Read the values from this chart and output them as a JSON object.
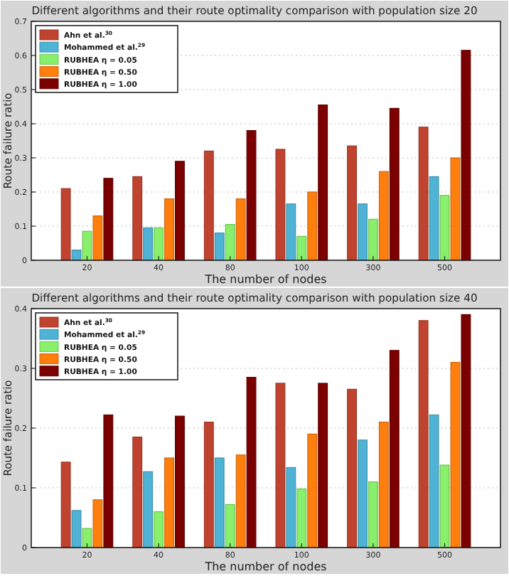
{
  "chart_data": [
    {
      "type": "bar",
      "title": "Different algorithms and their route optimality comparison with  population size 20",
      "xlabel": "The number of nodes",
      "ylabel": "Route failure ratio",
      "categories": [
        "20",
        "40",
        "80",
        "100",
        "300",
        "500"
      ],
      "ylim": [
        0,
        0.7
      ],
      "yticks": [
        0,
        0.1,
        0.2,
        0.3,
        0.4,
        0.5,
        0.6,
        0.7
      ],
      "grid": "y",
      "legend": "top left",
      "series": [
        {
          "name": "Ahn et al.$^{30}$",
          "color": "#c0432f",
          "values": [
            0.21,
            0.245,
            0.32,
            0.325,
            0.335,
            0.39
          ]
        },
        {
          "name": "Mohammed et al.$^{29}$",
          "color": "#4fb3d6",
          "values": [
            0.03,
            0.095,
            0.08,
            0.165,
            0.165,
            0.245
          ]
        },
        {
          "name": "RUBHEA η = 0.05",
          "color": "#88f06a",
          "values": [
            0.085,
            0.095,
            0.105,
            0.07,
            0.12,
            0.19
          ]
        },
        {
          "name": "RUBHEA η = 0.50",
          "color": "#ff7f0e",
          "values": [
            0.13,
            0.18,
            0.18,
            0.2,
            0.26,
            0.3
          ]
        },
        {
          "name": "RUBHEA η = 1.00",
          "color": "#7b0000",
          "values": [
            0.24,
            0.29,
            0.38,
            0.455,
            0.445,
            0.615
          ]
        }
      ]
    },
    {
      "type": "bar",
      "title": "Different algorithms and their route optimality comparison with  population size 40",
      "xlabel": "The number of nodes",
      "ylabel": "Route failure ratio",
      "categories": [
        "20",
        "40",
        "80",
        "100",
        "300",
        "500"
      ],
      "ylim": [
        0,
        0.4
      ],
      "yticks": [
        0,
        0.1,
        0.2,
        0.3,
        0.4
      ],
      "grid": "y",
      "legend": "top left",
      "series": [
        {
          "name": "Ahn et al.$^{30}$",
          "color": "#c0432f",
          "values": [
            0.143,
            0.185,
            0.21,
            0.275,
            0.265,
            0.38
          ]
        },
        {
          "name": "Mohammed et al.$^{29}$",
          "color": "#4fb3d6",
          "values": [
            0.062,
            0.127,
            0.15,
            0.134,
            0.18,
            0.222
          ]
        },
        {
          "name": "RUBHEA η = 0.05",
          "color": "#88f06a",
          "values": [
            0.032,
            0.06,
            0.072,
            0.098,
            0.11,
            0.138
          ]
        },
        {
          "name": "RUBHEA η = 0.50",
          "color": "#ff7f0e",
          "values": [
            0.08,
            0.15,
            0.155,
            0.19,
            0.21,
            0.31
          ]
        },
        {
          "name": "RUBHEA η = 1.00",
          "color": "#7b0000",
          "values": [
            0.222,
            0.22,
            0.285,
            0.275,
            0.33,
            0.39
          ]
        }
      ]
    }
  ]
}
